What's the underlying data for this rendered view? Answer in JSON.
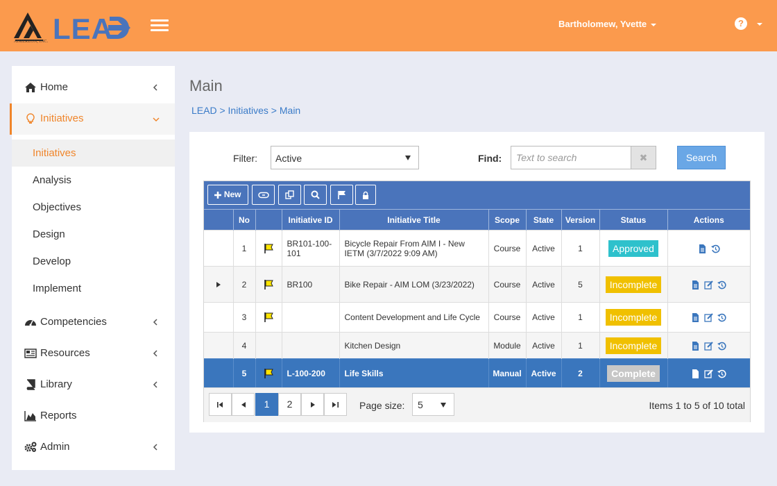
{
  "header": {
    "brand": "LEAD",
    "brand_sub": "AIMEREON, INC.",
    "user_name": "Bartholomew, Yvette",
    "help_icon": "question-circle-icon",
    "accent_color": "#fb9a4d"
  },
  "sidebar": {
    "items": [
      {
        "label": "Home",
        "icon": "home-icon"
      },
      {
        "label": "Initiatives",
        "icon": "lightbulb-icon"
      },
      {
        "label": "Competencies",
        "icon": "dashboard-icon"
      },
      {
        "label": "Resources",
        "icon": "newspaper-icon"
      },
      {
        "label": "Library",
        "icon": "book-icon"
      },
      {
        "label": "Reports",
        "icon": "area-chart-icon"
      },
      {
        "label": "Admin",
        "icon": "cogs-icon"
      }
    ],
    "subitems": [
      {
        "label": "Initiatives"
      },
      {
        "label": "Analysis"
      },
      {
        "label": "Objectives"
      },
      {
        "label": "Design"
      },
      {
        "label": "Develop"
      },
      {
        "label": "Implement"
      }
    ]
  },
  "main": {
    "title": "Main",
    "breadcrumb": [
      "LEAD",
      "Initiatives",
      "Main"
    ],
    "breadcrumb_sep": " > "
  },
  "filter": {
    "label": "Filter:",
    "value": "Active",
    "find_label": "Find:",
    "find_placeholder": "Text to search",
    "clear_symbol": "✖",
    "search_label": "Search"
  },
  "toolbar": {
    "new_label": "New"
  },
  "grid": {
    "columns": [
      "No",
      "Initiative ID",
      "Initiative Title",
      "Scope",
      "State",
      "Version",
      "Status",
      "Actions"
    ],
    "rows": [
      {
        "no": "1",
        "flag": true,
        "id": "BR101-100-101",
        "title": "Bicycle Repair From AIM I - New IETM (3/7/2022 9:09 AM)",
        "scope": "Course",
        "state": "Active",
        "version": "1",
        "status": "Approved",
        "status_kind": "approved",
        "edit": false,
        "expander": false
      },
      {
        "no": "2",
        "flag": true,
        "id": "BR100",
        "title": "Bike Repair - AIM LOM (3/23/2022)",
        "scope": "Course",
        "state": "Active",
        "version": "5",
        "status": "Incomplete",
        "status_kind": "incomplete",
        "edit": true,
        "expander": true
      },
      {
        "no": "3",
        "flag": true,
        "id": "",
        "title": "Content Development and Life Cycle",
        "scope": "Course",
        "state": "Active",
        "version": "1",
        "status": "Incomplete",
        "status_kind": "incomplete",
        "edit": true,
        "expander": false
      },
      {
        "no": "4",
        "flag": false,
        "id": "",
        "title": "Kitchen Design",
        "scope": "Module",
        "state": "Active",
        "version": "1",
        "status": "Incomplete",
        "status_kind": "incomplete",
        "edit": true,
        "expander": false
      },
      {
        "no": "5",
        "flag": true,
        "id": "L-100-200",
        "title": "Life Skills",
        "scope": "Manual",
        "state": "Active",
        "version": "2",
        "status": "Complete",
        "status_kind": "complete",
        "edit": true,
        "expander": false,
        "selected": true
      }
    ]
  },
  "pager": {
    "pages": [
      "1",
      "2"
    ],
    "current": "1",
    "page_size_label": "Page size:",
    "page_size": "5",
    "info": "Items 1 to 5 of 10 total"
  }
}
